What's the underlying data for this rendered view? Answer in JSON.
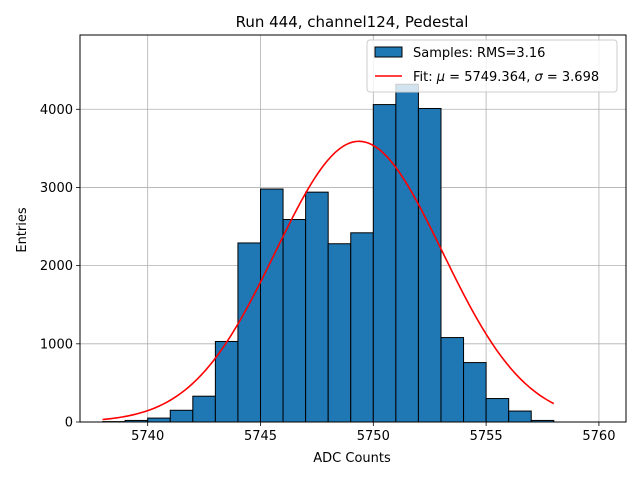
{
  "chart_data": {
    "type": "bar",
    "title": "Run 444, channel124, Pedestal",
    "xlabel": "ADC Counts",
    "ylabel": "Entries",
    "xlim": [
      5737.0,
      5761.2
    ],
    "ylim": [
      0,
      4950
    ],
    "grid": true,
    "xticks": [
      5740,
      5745,
      5750,
      5755,
      5760
    ],
    "yticks": [
      0,
      1000,
      2000,
      3000,
      4000
    ],
    "histogram": {
      "name": "Samples: RMS=3.16",
      "color": "#1f77b4",
      "edgecolor": "#000000",
      "bin_edges": [
        5738,
        5739,
        5740,
        5741,
        5742,
        5743,
        5744,
        5745,
        5746,
        5747,
        5748,
        5749,
        5750,
        5751,
        5752,
        5753,
        5754,
        5755,
        5756,
        5757,
        5758
      ],
      "counts": [
        5,
        20,
        50,
        150,
        330,
        1030,
        2290,
        2980,
        2590,
        2940,
        2280,
        2420,
        4060,
        4320,
        4010,
        1080,
        760,
        300,
        140,
        20
      ]
    },
    "fit": {
      "name": "Fit: μ = 5749.364, σ = 3.698",
      "label_prefix": "Fit: ",
      "mu_symbol": "μ",
      "mu_text": " = 5749.364, ",
      "sigma_symbol": "σ",
      "sigma_text": " = 3.698",
      "color": "#ff0000",
      "mu": 5749.364,
      "sigma": 3.698,
      "amplitude": 3590,
      "x_range": [
        5738,
        5758
      ]
    },
    "legend": {
      "placement": "upper-right",
      "entries": [
        "Samples: RMS=3.16",
        "Fit: μ = 5749.364, σ = 3.698"
      ]
    }
  }
}
